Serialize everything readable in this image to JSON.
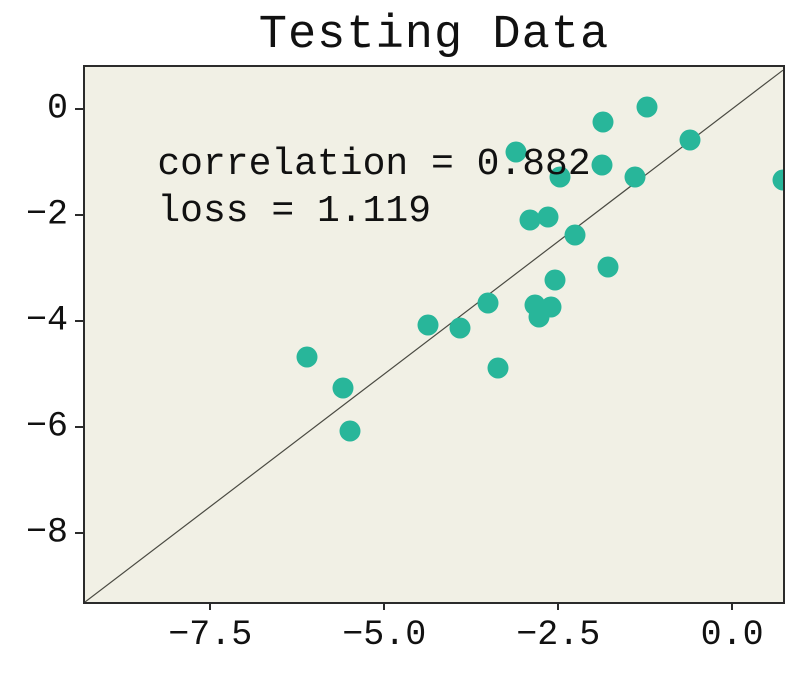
{
  "figure": {
    "title": "Testing Data",
    "background_color": "#ffffff",
    "axes_background_color": "#f1f0e5",
    "spine_color": "#2b2b2b",
    "text_color": "#111111"
  },
  "annotations": {
    "correlation_label": "correlation = 0.882",
    "loss_label": "loss = 1.119"
  },
  "chart_data": {
    "type": "scatter",
    "title": "Testing Data",
    "xlabel": "",
    "ylabel": "",
    "xlim": [
      -9.3,
      0.73
    ],
    "ylim": [
      -9.3,
      0.79
    ],
    "grid": false,
    "legend": null,
    "marker_color": "#28b69a",
    "marker_diameter_px": 21,
    "xticks": {
      "values": [
        -7.5,
        -5.0,
        -2.5,
        0.0
      ],
      "labels": [
        "−7.5",
        "−5.0",
        "−2.5",
        "0.0"
      ]
    },
    "yticks": {
      "values": [
        0,
        -2,
        -4,
        -6,
        -8
      ],
      "labels": [
        "0",
        "−2",
        "−4",
        "−6",
        "−8"
      ]
    },
    "identity_line": {
      "x1": -9.3,
      "y1": -9.3,
      "x2": 0.73,
      "y2": 0.73,
      "color": "#4a4a42",
      "width": 1.2
    },
    "correlation": 0.882,
    "loss": 1.119,
    "annotations": [
      {
        "key": "correlation_label",
        "text": "correlation = 0.882",
        "x": -8.26,
        "y": -1.06
      },
      {
        "key": "loss_label",
        "text": "loss = 1.119",
        "x": -8.26,
        "y": -1.94
      }
    ],
    "points": [
      {
        "x": -1.85,
        "y": -0.25
      },
      {
        "x": -1.22,
        "y": 0.04
      },
      {
        "x": -0.6,
        "y": -0.58
      },
      {
        "x": -3.1,
        "y": -0.81
      },
      {
        "x": -1.87,
        "y": -1.06
      },
      {
        "x": -2.47,
        "y": -1.28
      },
      {
        "x": -1.39,
        "y": -1.28
      },
      {
        "x": 0.73,
        "y": -1.34
      },
      {
        "x": -2.9,
        "y": -2.09
      },
      {
        "x": -2.64,
        "y": -2.04
      },
      {
        "x": -2.26,
        "y": -2.38
      },
      {
        "x": -1.78,
        "y": -2.98
      },
      {
        "x": -2.54,
        "y": -3.23
      },
      {
        "x": -4.37,
        "y": -4.08
      },
      {
        "x": -3.91,
        "y": -4.13
      },
      {
        "x": -3.51,
        "y": -3.66
      },
      {
        "x": -2.83,
        "y": -3.7
      },
      {
        "x": -2.6,
        "y": -3.74
      },
      {
        "x": -2.77,
        "y": -3.92
      },
      {
        "x": -3.36,
        "y": -4.89
      },
      {
        "x": -6.11,
        "y": -4.68
      },
      {
        "x": -5.59,
        "y": -5.26
      },
      {
        "x": -5.49,
        "y": -6.08
      }
    ]
  }
}
